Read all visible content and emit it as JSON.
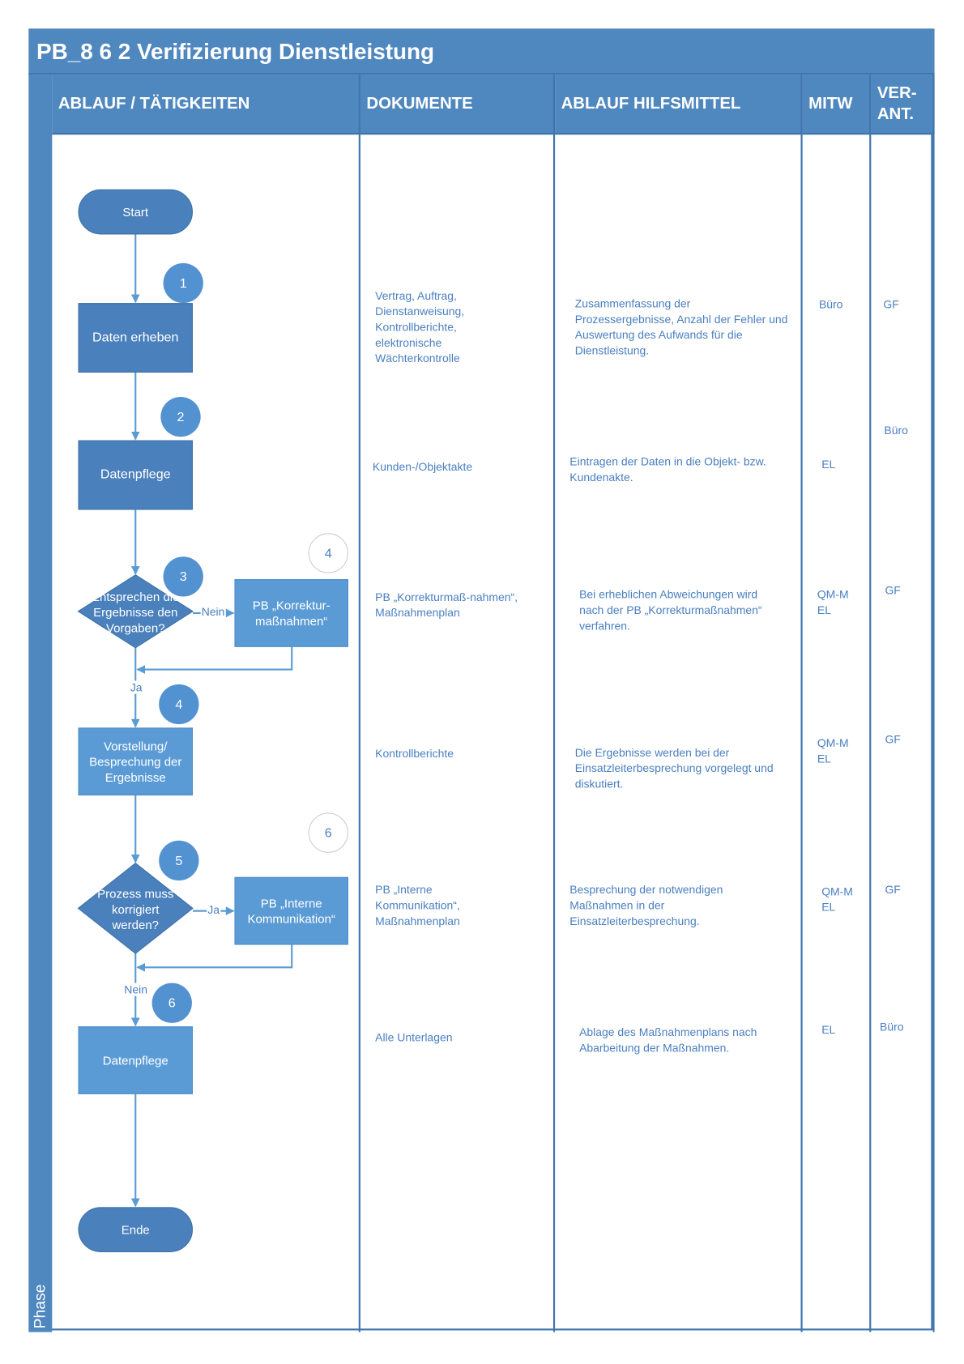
{
  "title": "PB_8 6 2 Verifizierung Dienstleistung",
  "phase_label": "Phase",
  "columns": [
    "ABLAUF / TÄTIGKEITEN",
    "DOKUMENTE",
    "ABLAUF HILFSMITTEL",
    "MITW",
    "VER-\nANT."
  ],
  "colors": {
    "header": "#4f87bf",
    "shape_dark": "#4a80bb",
    "shape_light": "#5b9bd5",
    "text": "#4a7fc0"
  },
  "flow": {
    "start": "Start",
    "step1": "Daten erheben",
    "step2": "Datenpflege",
    "decision1": "Entsprechen die Ergebnisse den Vorgaben?",
    "sub1": "PB „Korrektur-maßnahmen“",
    "step4": "Vorstellung/ Besprechung der Ergebnisse",
    "decision2": "Prozess muss korrigiert werden?",
    "sub2": "PB „Interne Kommunikation“",
    "step6": "Datenpflege",
    "end": "Ende",
    "no1": "Nein",
    "yes1": "Ja",
    "yes2": "Ja",
    "no2": "Nein",
    "badges": [
      "1",
      "2",
      "3",
      "4",
      "5",
      "6"
    ],
    "outline_badges": [
      "4",
      "6"
    ]
  },
  "rows": [
    {
      "docs": "Vertrag, Auftrag, Dienstanweisung, Kontrollberichte, elektronische Wächterkontrolle",
      "aid": "Zusammenfassung der Prozessergebnisse, Anzahl der Fehler und Auswertung des Aufwands für die Dienstleistung.",
      "mitw": "Büro",
      "verant": "GF"
    },
    {
      "docs": "Kunden-/Objektakte",
      "aid": "Eintragen der Daten in die Objekt- bzw. Kundenakte.",
      "mitw": "EL",
      "verant": "Büro"
    },
    {
      "docs": "PB „Korrekturmaß-nahmen“, Maßnahmenplan",
      "aid": "Bei erheblichen Abweichungen wird nach der PB „Korrekturmaßnahmen“ verfahren.",
      "mitw": "QM-M EL",
      "verant": "GF"
    },
    {
      "docs": "Kontrollberichte",
      "aid": "Die Ergebnisse werden bei der Einsatzleiterbesprechung vorgelegt und diskutiert.",
      "mitw": "QM-M EL",
      "verant": "GF"
    },
    {
      "docs": "PB „Interne Kommunikation“, Maßnahmenplan",
      "aid": "Besprechung der notwendigen Maßnahmen in der Einsatzleiterbesprechung.",
      "mitw": "QM-M EL",
      "verant": "GF"
    },
    {
      "docs": "Alle Unterlagen",
      "aid": "Ablage des Maßnahmenplans nach Abarbeitung der Maßnahmen.",
      "mitw": "EL",
      "verant": "Büro"
    }
  ]
}
